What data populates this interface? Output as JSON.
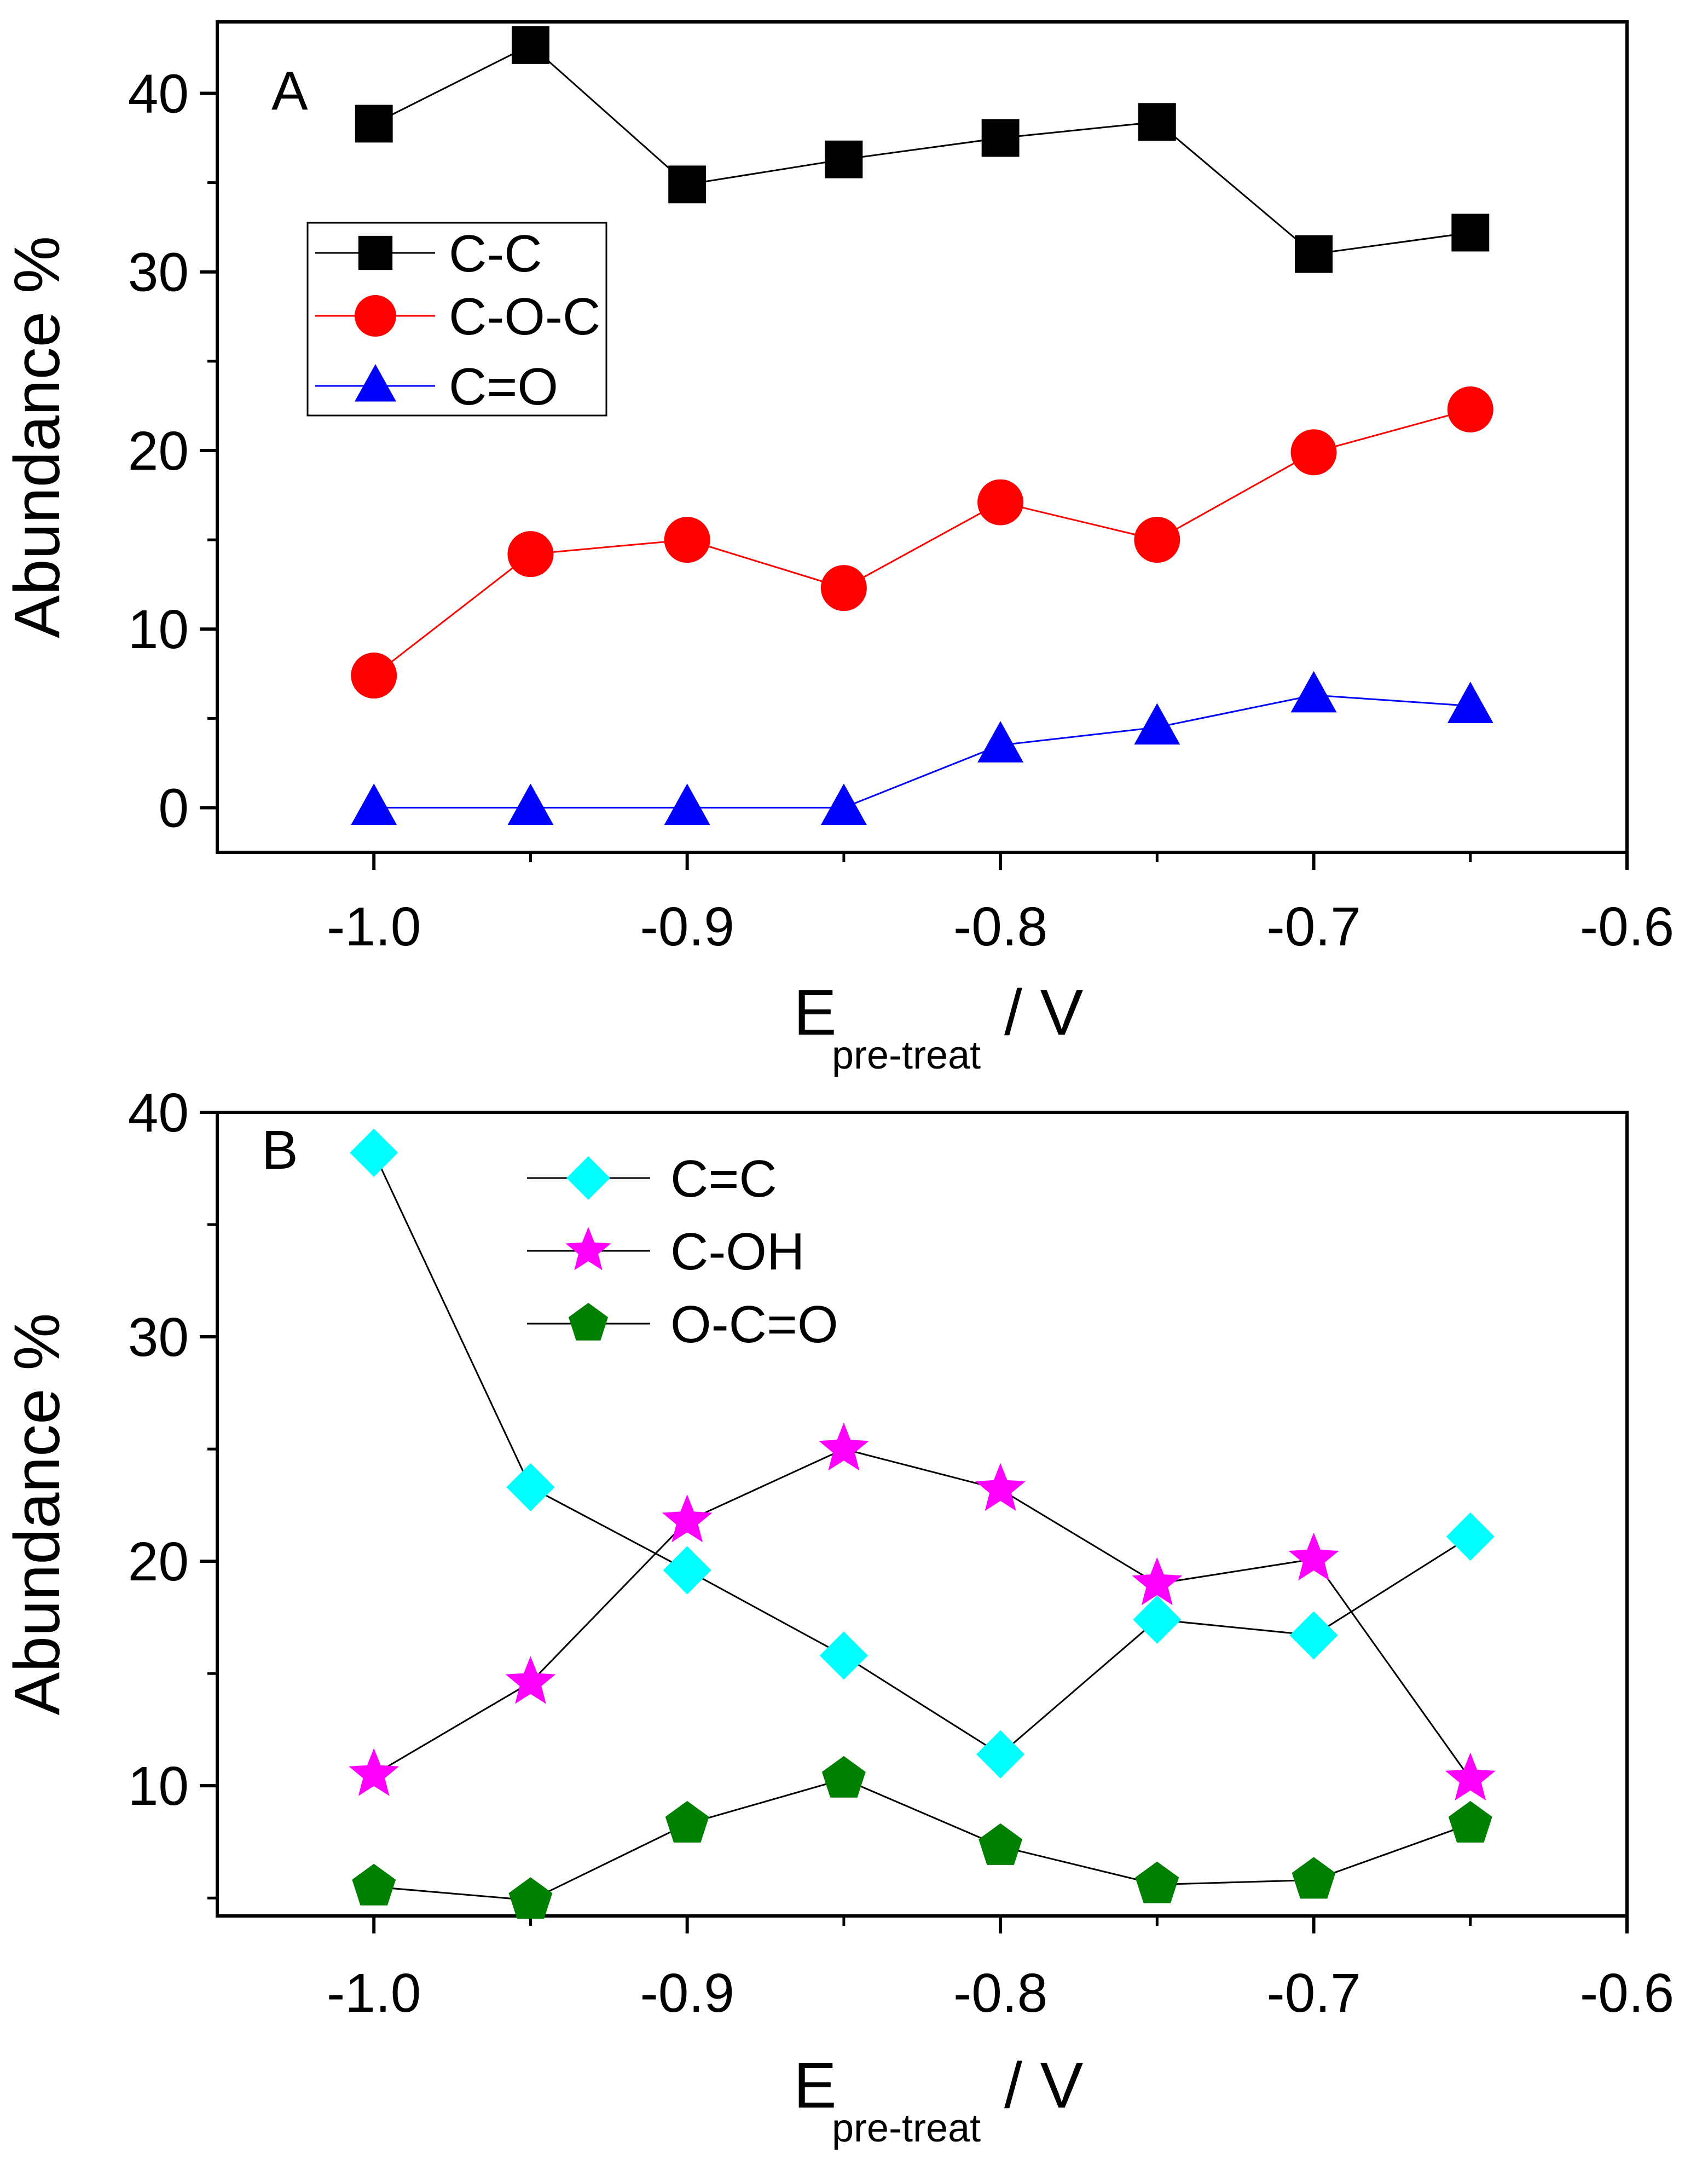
{
  "chart_data": [
    {
      "panel": "A",
      "type": "line",
      "xlabel": "E",
      "xlabel_subscript": "pre-treat",
      "xlabel_unit": "/ V",
      "ylabel": "Abundance %",
      "xlim": [
        -1.05,
        -0.6
      ],
      "ylim": [
        -2.5,
        44
      ],
      "xticks": [
        -1.0,
        -0.9,
        -0.8,
        -0.7,
        -0.6
      ],
      "xtick_labels": [
        "-1.0",
        "-0.9",
        "-0.8",
        "-0.7",
        "-0.6"
      ],
      "yticks": [
        0,
        10,
        20,
        30,
        40
      ],
      "ytick_labels": [
        "0",
        "10",
        "20",
        "30",
        "40"
      ],
      "x": [
        -1.0,
        -0.95,
        -0.9,
        -0.85,
        -0.8,
        -0.75,
        -0.7,
        -0.65
      ],
      "legend_position": "upper-left",
      "series": [
        {
          "name": "C-C",
          "marker": "square",
          "fill": "#000000",
          "line": "#000000",
          "values": [
            38.3,
            42.7,
            34.9,
            36.3,
            37.5,
            38.4,
            31.0,
            32.2
          ]
        },
        {
          "name": "C-O-C",
          "marker": "circle",
          "fill": "#ff0000",
          "line": "#ff0000",
          "values": [
            7.4,
            14.2,
            15.0,
            12.3,
            17.1,
            15.0,
            19.9,
            22.3
          ]
        },
        {
          "name": "C=O",
          "marker": "triangle",
          "fill": "#0000ff",
          "line": "#0000ff",
          "values": [
            0.0,
            0.0,
            0.0,
            0.0,
            3.5,
            4.5,
            6.3,
            5.7
          ]
        }
      ]
    },
    {
      "panel": "B",
      "type": "line",
      "xlabel": "E",
      "xlabel_subscript": "pre-treat",
      "xlabel_unit": "/ V",
      "ylabel": "Abundance %",
      "xlim": [
        -1.05,
        -0.6
      ],
      "ylim": [
        4.2,
        40
      ],
      "xticks": [
        -1.0,
        -0.9,
        -0.8,
        -0.7,
        -0.6
      ],
      "xtick_labels": [
        "-1.0",
        "-0.9",
        "-0.8",
        "-0.7",
        "-0.6"
      ],
      "yticks": [
        10,
        20,
        30,
        40
      ],
      "ytick_labels": [
        "10",
        "20",
        "30",
        "40"
      ],
      "x": [
        -1.0,
        -0.95,
        -0.9,
        -0.85,
        -0.8,
        -0.75,
        -0.7,
        -0.65
      ],
      "legend_position": "upper-center",
      "series": [
        {
          "name": "C=C",
          "marker": "diamond",
          "fill": "#00ffff",
          "line": "#000000",
          "values": [
            38.2,
            23.3,
            19.6,
            15.8,
            11.4,
            17.4,
            16.7,
            21.1
          ]
        },
        {
          "name": "C-OH",
          "marker": "star",
          "fill": "#ff00ff",
          "line": "#000000",
          "values": [
            10.5,
            14.6,
            21.8,
            25.0,
            23.2,
            19.0,
            20.1,
            10.3
          ]
        },
        {
          "name": "O-C=O",
          "marker": "pentagon",
          "fill": "#008000",
          "line": "#000000",
          "values": [
            5.5,
            4.9,
            8.3,
            10.3,
            7.3,
            5.6,
            5.8,
            8.3
          ]
        }
      ]
    }
  ],
  "panel_labels": {
    "a": "A",
    "b": "B"
  }
}
